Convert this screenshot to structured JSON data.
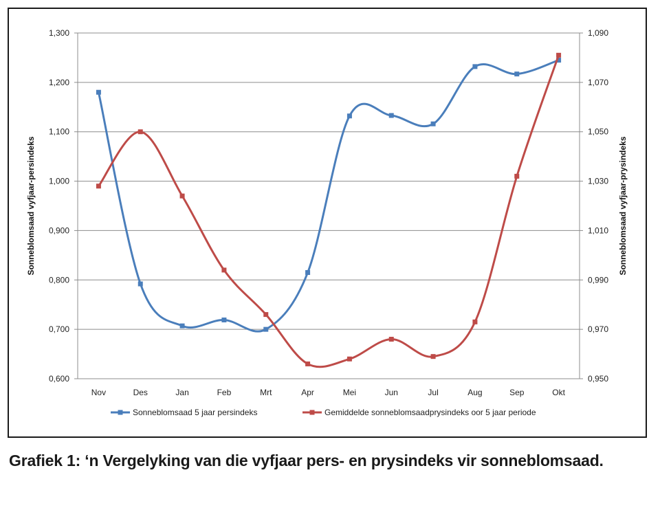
{
  "chart_data": {
    "type": "line",
    "categories": [
      "Nov",
      "Des",
      "Jan",
      "Feb",
      "Mrt",
      "Apr",
      "Mei",
      "Jun",
      "Jul",
      "Aug",
      "Sep",
      "Okt"
    ],
    "series": [
      {
        "name": "Sonneblomsaad 5 jaar persindeks",
        "axis": "left",
        "color": "#4a7ebb",
        "values": [
          1.18,
          0.792,
          0.707,
          0.719,
          0.7,
          0.815,
          1.132,
          1.133,
          1.116,
          1.232,
          1.217,
          1.245
        ]
      },
      {
        "name": "Gemiddelde sonneblomsaadprysindeks oor 5 jaar periode",
        "axis": "right",
        "color": "#be4b48",
        "values": [
          1.028,
          1.05,
          1.024,
          0.994,
          0.976,
          0.956,
          0.958,
          0.966,
          0.959,
          0.973,
          1.032,
          1.081
        ]
      }
    ],
    "y_left": {
      "label": "Sonneblomsaad vyfjaar-persindeks",
      "ylim": [
        0.6,
        1.3
      ],
      "ticks": [
        "0,600",
        "0,700",
        "0,800",
        "0,900",
        "1,000",
        "1,100",
        "1,200",
        "1,300"
      ]
    },
    "y_right": {
      "label": "Sonneblomsaad vyfjaar-prysindeks",
      "ylim": [
        0.95,
        1.09
      ],
      "ticks": [
        "0,950",
        "0,970",
        "0,990",
        "1,010",
        "1,030",
        "1,050",
        "1,070",
        "1,090"
      ]
    },
    "grid": true,
    "legend_position": "bottom"
  },
  "caption": "Grafiek 1: ‘n Vergelyking van die vyfjaar pers- en prysindeks vir sonneblomsaad."
}
